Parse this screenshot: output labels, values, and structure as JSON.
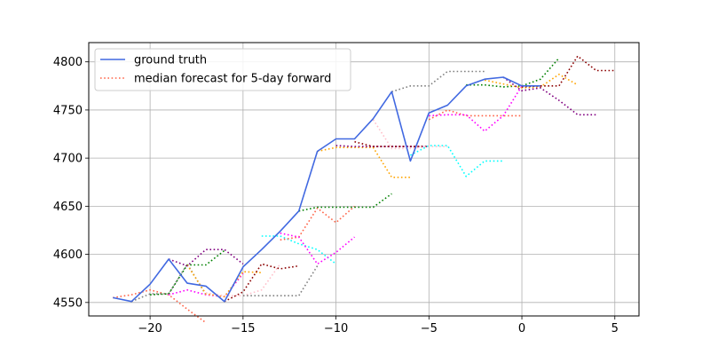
{
  "chart_data": {
    "type": "line",
    "title": "",
    "xlabel": "",
    "ylabel": "",
    "xlim": [
      -23.3,
      6.3
    ],
    "ylim": [
      4536,
      4820
    ],
    "xticks": [
      -20,
      -15,
      -10,
      -5,
      0,
      5
    ],
    "yticks": [
      4550,
      4600,
      4650,
      4700,
      4750,
      4800
    ],
    "xtick_labels": [
      "−20",
      "−15",
      "−10",
      "−5",
      "0",
      "5"
    ],
    "ytick_labels": [
      "4550",
      "4600",
      "4650",
      "4700",
      "4750",
      "4800"
    ],
    "grid": true,
    "legend": {
      "placement": "top-left",
      "entries": [
        {
          "label": "ground truth",
          "color": "#4169e1",
          "style": "solid"
        },
        {
          "label": "median forecast for 5-day forward",
          "color": "#ff6347",
          "style": "dotted"
        }
      ]
    },
    "ground_truth": {
      "name": "ground truth",
      "color": "#4169e1",
      "x": [
        -22,
        -21,
        -20,
        -19,
        -18,
        -17,
        -16,
        -15,
        -14,
        -13,
        -12,
        -11,
        -10,
        -9,
        -8,
        -7,
        -6,
        -5,
        -4,
        -3,
        -2,
        -1,
        0,
        1
      ],
      "y": [
        4555,
        4551,
        4569,
        4595,
        4570,
        4567,
        4551,
        4587,
        4605,
        4624,
        4645,
        4707,
        4720,
        4720,
        4741,
        4769,
        4697,
        4747,
        4755,
        4775,
        4782,
        4784,
        4775,
        4775
      ]
    },
    "forecasts": [
      {
        "color": "#ff6347",
        "x": [
          -22,
          -21,
          -20,
          -19,
          -18,
          -17
        ],
        "y": [
          4555,
          4558,
          4563,
          4558,
          4543,
          4529
        ]
      },
      {
        "color": "#808080",
        "x": [
          -21,
          -20,
          -19,
          -18,
          -17
        ],
        "y": [
          4551,
          4559,
          4559,
          4590,
          4558
        ]
      },
      {
        "color": "#008000",
        "x": [
          -20,
          -19,
          -18,
          -17,
          -16
        ],
        "y": [
          4558,
          4559,
          4589,
          4589,
          4604
        ]
      },
      {
        "color": "#ff00ff",
        "x": [
          -19,
          -18,
          -17,
          -16,
          -15
        ],
        "y": [
          4558,
          4563,
          4558,
          4556,
          4580
        ]
      },
      {
        "color": "#ffa500",
        "x": [
          -18,
          -17,
          -16,
          -15,
          -14
        ],
        "y": [
          4589,
          4559,
          4556,
          4582,
          4581
        ]
      },
      {
        "color": "#800080",
        "x": [
          -19,
          -18,
          -17,
          -16,
          -15
        ],
        "y": [
          4595,
          4588,
          4605,
          4605,
          4590
        ]
      },
      {
        "color": "#ffc0cb",
        "x": [
          -17,
          -16,
          -15,
          -14,
          -13
        ],
        "y": [
          4560,
          4557,
          4557,
          4563,
          4590
        ]
      },
      {
        "color": "#8b0000",
        "x": [
          -16,
          -15,
          -14,
          -13,
          -12
        ],
        "y": [
          4551,
          4561,
          4590,
          4585,
          4588
        ]
      },
      {
        "color": "#808080",
        "x": [
          -15,
          -14,
          -13,
          -12,
          -11
        ],
        "y": [
          4557,
          4557,
          4557,
          4557,
          4588
        ]
      },
      {
        "color": "#00ffff",
        "x": [
          -14,
          -13,
          -12,
          -11,
          -10
        ],
        "y": [
          4619,
          4619,
          4611,
          4605,
          4590
        ]
      },
      {
        "color": "#ff6347",
        "x": [
          -13,
          -12,
          -11,
          -10,
          -9
        ],
        "y": [
          4615,
          4618,
          4648,
          4633,
          4650
        ]
      },
      {
        "color": "#ff00ff",
        "x": [
          -13,
          -12,
          -11,
          -10,
          -9
        ],
        "y": [
          4622,
          4618,
          4590,
          4602,
          4618
        ]
      },
      {
        "color": "#008000",
        "x": [
          -12,
          -11,
          -10,
          -9,
          -8,
          -7
        ],
        "y": [
          4645,
          4649,
          4649,
          4649,
          4649,
          4663
        ]
      },
      {
        "color": "#ffa500",
        "x": [
          -11,
          -10,
          -9,
          -8,
          -7,
          -6
        ],
        "y": [
          4707,
          4711,
          4711,
          4711,
          4680,
          4680
        ]
      },
      {
        "color": "#800080",
        "x": [
          -10,
          -9,
          -8,
          -7,
          -6,
          -5
        ],
        "y": [
          4713,
          4712,
          4712,
          4712,
          4712,
          4712
        ]
      },
      {
        "color": "#8b0000",
        "x": [
          -9,
          -8,
          -7,
          -6,
          -5
        ],
        "y": [
          4717,
          4712,
          4712,
          4712,
          4712
        ]
      },
      {
        "color": "#ffc0cb",
        "x": [
          -8,
          -7,
          -6,
          -5,
          -4
        ],
        "y": [
          4740,
          4710,
          4710,
          4712,
          4712
        ]
      },
      {
        "color": "#00ffff",
        "x": [
          -6,
          -5,
          -4,
          -3,
          -2,
          -1
        ],
        "y": [
          4703,
          4713,
          4713,
          4681,
          4697,
          4697
        ]
      },
      {
        "color": "#808080",
        "x": [
          -7,
          -6,
          -5,
          -4,
          -3,
          -2
        ],
        "y": [
          4769,
          4775,
          4775,
          4790,
          4790,
          4790
        ]
      },
      {
        "color": "#ff6347",
        "x": [
          -5,
          -4,
          -3,
          -2,
          -1,
          0
        ],
        "y": [
          4740,
          4750,
          4744,
          4744,
          4744,
          4744
        ]
      },
      {
        "color": "#ff00ff",
        "x": [
          -5,
          -4,
          -3,
          -2,
          -1,
          0
        ],
        "y": [
          4744,
          4745,
          4745,
          4728,
          4744,
          4775
        ]
      },
      {
        "color": "#008000",
        "x": [
          -3,
          -2,
          -1,
          0,
          1,
          2
        ],
        "y": [
          4776,
          4776,
          4774,
          4775,
          4782,
          4804
        ]
      },
      {
        "color": "#ffa500",
        "x": [
          -2,
          -1,
          0,
          1,
          2,
          3
        ],
        "y": [
          4781,
          4777,
          4773,
          4774,
          4787,
          4776
        ]
      },
      {
        "color": "#800080",
        "x": [
          -1,
          0,
          1,
          2,
          3,
          4
        ],
        "y": [
          4784,
          4770,
          4773,
          4760,
          4745,
          4745
        ]
      },
      {
        "color": "#8b0000",
        "x": [
          0,
          1,
          2,
          3,
          4,
          5
        ],
        "y": [
          4774,
          4775,
          4775,
          4806,
          4791,
          4791
        ]
      }
    ]
  }
}
